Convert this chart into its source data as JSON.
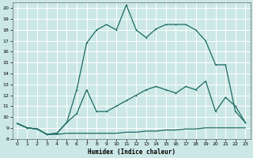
{
  "xlabel": "Humidex (Indice chaleur)",
  "bg_color": "#cce8e6",
  "grid_color": "#ffffff",
  "line_color": "#1a6b62",
  "xlim": [
    -0.5,
    23.5
  ],
  "ylim": [
    8,
    20.5
  ],
  "yticks": [
    8,
    9,
    10,
    11,
    12,
    13,
    14,
    15,
    16,
    17,
    18,
    19,
    20
  ],
  "xticks": [
    0,
    1,
    2,
    3,
    4,
    5,
    6,
    7,
    8,
    9,
    10,
    11,
    12,
    13,
    14,
    15,
    16,
    17,
    18,
    19,
    20,
    21,
    22,
    23
  ],
  "line_top_x": [
    0,
    1,
    2,
    3,
    4,
    5,
    6,
    7,
    8,
    9,
    10,
    11,
    12,
    13,
    14,
    15,
    16,
    17,
    18,
    19,
    20,
    21,
    22,
    23
  ],
  "line_top_y": [
    9.4,
    9.0,
    8.9,
    8.4,
    8.5,
    9.5,
    12.5,
    16.8,
    18.0,
    18.5,
    18.0,
    20.3,
    18.0,
    17.3,
    18.1,
    18.5,
    18.5,
    18.5,
    18.0,
    17.0,
    14.8,
    14.8,
    10.5,
    9.5
  ],
  "line_mid_x": [
    0,
    1,
    2,
    3,
    4,
    5,
    6,
    7,
    8,
    9,
    10,
    11,
    12,
    13,
    14,
    15,
    16,
    17,
    18,
    19,
    20,
    21,
    22,
    23
  ],
  "line_mid_y": [
    9.4,
    9.0,
    8.9,
    8.4,
    8.5,
    9.5,
    10.3,
    12.5,
    10.5,
    10.5,
    11.0,
    11.5,
    12.0,
    12.5,
    12.8,
    12.5,
    12.2,
    12.8,
    12.5,
    13.3,
    10.5,
    11.8,
    11.0,
    9.5
  ],
  "line_bot_x": [
    0,
    1,
    2,
    3,
    4,
    5,
    6,
    7,
    8,
    9,
    10,
    11,
    12,
    13,
    14,
    15,
    16,
    17,
    18,
    19,
    20,
    21,
    22,
    23
  ],
  "line_bot_y": [
    9.4,
    9.0,
    8.9,
    8.4,
    8.4,
    8.5,
    8.5,
    8.5,
    8.5,
    8.5,
    8.5,
    8.6,
    8.6,
    8.7,
    8.7,
    8.8,
    8.8,
    8.9,
    8.9,
    9.0,
    9.0,
    9.0,
    9.0,
    9.0
  ]
}
